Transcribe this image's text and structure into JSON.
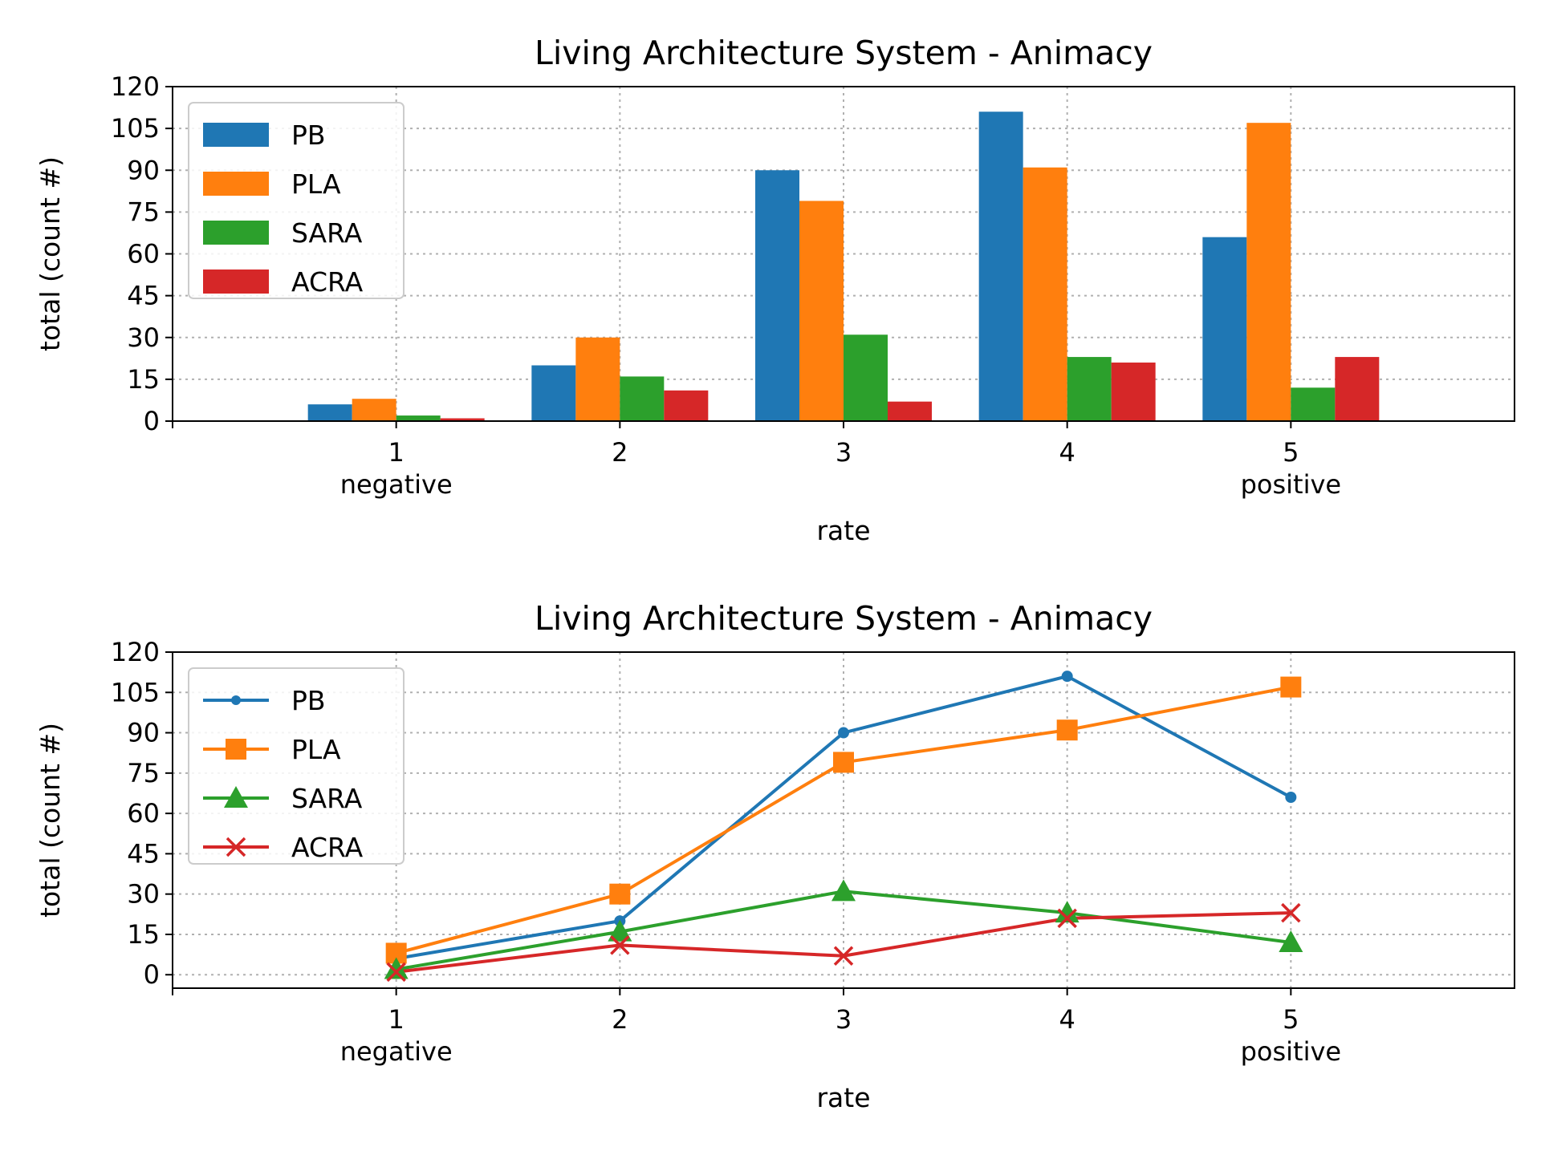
{
  "chart_data": [
    {
      "type": "bar",
      "title": "Living Architecture System - Animacy",
      "xlabel": "rate",
      "ylabel": "total (count #)",
      "categories": [
        "1",
        "2",
        "3",
        "4",
        "5"
      ],
      "category_sublabels": [
        "negative",
        "",
        "",
        "",
        "positive"
      ],
      "xlim": [
        0,
        6
      ],
      "ylim": [
        0,
        120
      ],
      "yticks": [
        0,
        15,
        30,
        45,
        60,
        75,
        90,
        105,
        120
      ],
      "grid": true,
      "legend_position": "top-left",
      "series": [
        {
          "name": "PB",
          "color": "#1f77b4",
          "values": [
            6,
            20,
            90,
            111,
            66
          ]
        },
        {
          "name": "PLA",
          "color": "#ff7f0e",
          "values": [
            8,
            30,
            79,
            91,
            107
          ]
        },
        {
          "name": "SARA",
          "color": "#2ca02c",
          "values": [
            2,
            16,
            31,
            23,
            12
          ]
        },
        {
          "name": "ACRA",
          "color": "#d62728",
          "values": [
            1,
            11,
            7,
            21,
            23
          ]
        }
      ]
    },
    {
      "type": "line",
      "title": "Living Architecture System - Animacy",
      "xlabel": "rate",
      "ylabel": "total (count #)",
      "categories": [
        "1",
        "2",
        "3",
        "4",
        "5"
      ],
      "category_sublabels": [
        "negative",
        "",
        "",
        "",
        "positive"
      ],
      "xlim": [
        0,
        6
      ],
      "ylim": [
        -5,
        120
      ],
      "yticks": [
        0,
        15,
        30,
        45,
        60,
        75,
        90,
        105,
        120
      ],
      "grid": true,
      "legend_position": "top-left",
      "series": [
        {
          "name": "PB",
          "color": "#1f77b4",
          "marker": "circle",
          "values": [
            6,
            20,
            90,
            111,
            66
          ]
        },
        {
          "name": "PLA",
          "color": "#ff7f0e",
          "marker": "square",
          "values": [
            8,
            30,
            79,
            91,
            107
          ]
        },
        {
          "name": "SARA",
          "color": "#2ca02c",
          "marker": "triangle",
          "values": [
            2,
            16,
            31,
            23,
            12
          ]
        },
        {
          "name": "ACRA",
          "color": "#d62728",
          "marker": "x",
          "values": [
            1,
            11,
            7,
            21,
            23
          ]
        }
      ]
    }
  ]
}
